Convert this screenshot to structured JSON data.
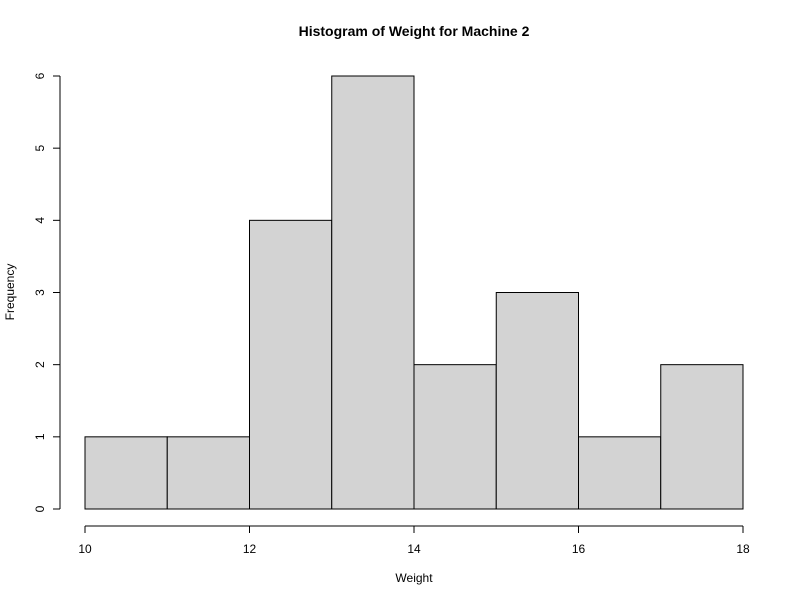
{
  "chart_data": {
    "type": "bar",
    "title": "Histogram of Weight for Machine 2",
    "xlabel": "Weight",
    "ylabel": "Frequency",
    "bins": [
      {
        "start": 10,
        "end": 11,
        "count": 1
      },
      {
        "start": 11,
        "end": 12,
        "count": 1
      },
      {
        "start": 12,
        "end": 13,
        "count": 4
      },
      {
        "start": 13,
        "end": 14,
        "count": 6
      },
      {
        "start": 14,
        "end": 15,
        "count": 2
      },
      {
        "start": 15,
        "end": 16,
        "count": 3
      },
      {
        "start": 16,
        "end": 17,
        "count": 1
      },
      {
        "start": 17,
        "end": 18,
        "count": 2
      }
    ],
    "xlim": [
      10,
      18
    ],
    "ylim": [
      0,
      6
    ],
    "x_ticks": [
      10,
      12,
      14,
      16,
      18
    ],
    "y_ticks": [
      0,
      1,
      2,
      3,
      4,
      5,
      6
    ],
    "grid": false,
    "legend": "none",
    "bar_color": "#d3d3d3",
    "edge_color": "#000000"
  }
}
